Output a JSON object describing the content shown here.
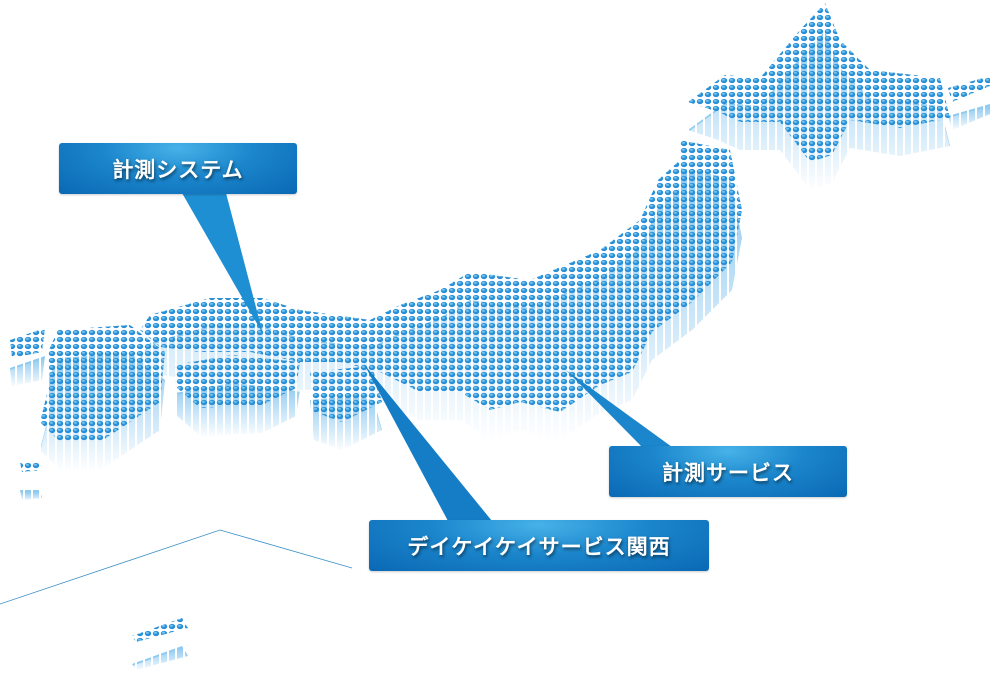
{
  "map": {
    "region": "Japan",
    "colors": {
      "dot": "#2a8fd6",
      "dot_highlight": "#5cb8ee",
      "label_bg": "#0a68b4",
      "label_text": "#ffffff",
      "line": "#3a8fc8"
    }
  },
  "labels": [
    {
      "text": "計測システム"
    },
    {
      "text": "計測サービス"
    },
    {
      "text": "デイケイケイサービス関西"
    }
  ]
}
